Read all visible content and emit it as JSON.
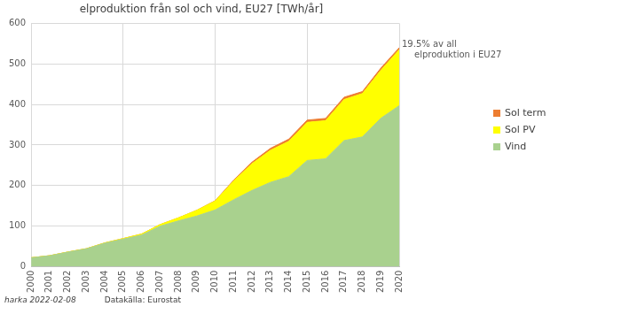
{
  "chart_data": {
    "type": "area",
    "title": "elproduktion från sol och vind, EU27 [TWh/år]",
    "categories": [
      "2000",
      "2001",
      "2002",
      "2003",
      "2004",
      "2005",
      "2006",
      "2007",
      "2008",
      "2009",
      "2010",
      "2011",
      "2012",
      "2013",
      "2014",
      "2015",
      "2016",
      "2017",
      "2018",
      "2019",
      "2020"
    ],
    "series": [
      {
        "name": "Vind",
        "color": "#a9d18e",
        "values": [
          22,
          27,
          36,
          44,
          58,
          68,
          78,
          100,
          113,
          125,
          140,
          165,
          188,
          208,
          222,
          262,
          266,
          311,
          320,
          366,
          397
        ]
      },
      {
        "name": "Sol PV",
        "color": "#ffff00",
        "values": [
          0.1,
          0.2,
          0.3,
          0.5,
          0.7,
          1.5,
          2.5,
          3.8,
          7.4,
          14,
          22,
          46,
          66,
          79,
          87,
          94,
          94,
          101,
          107,
          118,
          138
        ]
      },
      {
        "name": "Sol term",
        "color": "#ed7d31",
        "values": [
          0,
          0,
          0,
          0,
          0,
          0,
          0,
          0,
          0,
          0.1,
          0.8,
          2,
          3.8,
          4.8,
          5.5,
          5.5,
          5.6,
          5.8,
          4.8,
          5.6,
          4.9
        ]
      }
    ],
    "stacked": true,
    "ylim": [
      0,
      600
    ],
    "yticks": [
      0,
      100,
      200,
      300,
      400,
      500,
      600
    ],
    "grid": true,
    "legend": "right",
    "annotations": [
      "19.5% av all elproduktion i EU27"
    ],
    "footer": [
      "harka 2022-02-08",
      "Datakälla: Eurostat"
    ]
  }
}
